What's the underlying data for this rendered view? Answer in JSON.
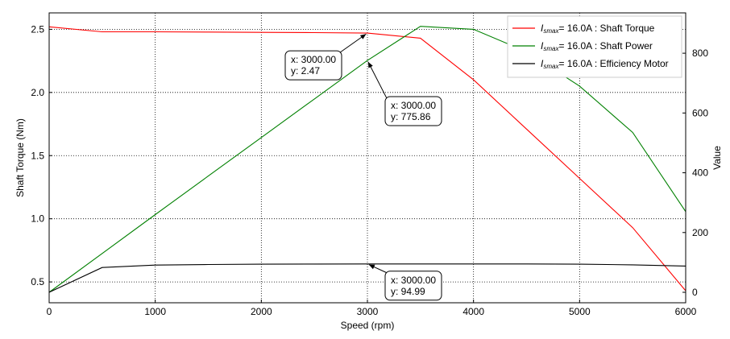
{
  "chart_data": {
    "type": "line",
    "xlabel": "Speed  (rpm)",
    "ylabel": "Shaft Torque  (Nm)",
    "y2label": "Value",
    "xlim": [
      0,
      6000
    ],
    "ylim": [
      0.335,
      2.63
    ],
    "y2lim": [
      -35,
      935
    ],
    "x_ticks": [
      "0",
      "1000",
      "2000",
      "3000",
      "4000",
      "5000",
      "6000"
    ],
    "y_ticks": [
      "0.5",
      "1.0",
      "1.5",
      "2.0",
      "2.5"
    ],
    "y2_ticks": [
      "0",
      "200",
      "400",
      "600",
      "800"
    ],
    "grid": true,
    "grid_style": "dotted",
    "legend_position": "top-right",
    "series": [
      {
        "name": "Shaft Torque",
        "legend_prefix": "I",
        "legend_sub": "smax",
        "legend_value": "= 16.0A",
        "color": "#ff0000",
        "axis": "left",
        "x": [
          0,
          500,
          1000,
          1500,
          2000,
          2500,
          3000,
          3500,
          4000,
          4500,
          5000,
          5500,
          6000
        ],
        "values": [
          2.52,
          2.48,
          2.48,
          2.478,
          2.476,
          2.474,
          2.47,
          2.43,
          2.1,
          1.71,
          1.32,
          0.93,
          0.43
        ]
      },
      {
        "name": "Shaft Power",
        "legend_prefix": "I",
        "legend_sub": "smax",
        "legend_value": "= 16.0A",
        "color": "#008000",
        "axis": "right",
        "x": [
          0,
          500,
          1000,
          1500,
          2000,
          2500,
          3000,
          3500,
          4000,
          4500,
          5000,
          5500,
          6000
        ],
        "values": [
          0,
          130,
          260,
          389,
          518,
          647,
          775.86,
          890,
          880,
          805,
          690,
          535,
          270
        ]
      },
      {
        "name": "Efficiency Motor",
        "legend_prefix": "I",
        "legend_sub": "smax",
        "legend_value": "= 16.0A",
        "color": "#000000",
        "axis": "right",
        "x": [
          0,
          500,
          1000,
          1500,
          2000,
          2500,
          3000,
          3500,
          4000,
          4500,
          5000,
          5500,
          6000
        ],
        "values": [
          0,
          83,
          91,
          93,
          94,
          94.6,
          94.99,
          95,
          95,
          94.8,
          94,
          92,
          88
        ]
      }
    ],
    "annotations": [
      {
        "series": 0,
        "x": 3000,
        "y": 2.47,
        "line1": "x: 3000.00",
        "line2": "y: 2.47",
        "placement": "lower-left"
      },
      {
        "series": 1,
        "x": 3000,
        "y": 775.86,
        "line1": "x: 3000.00",
        "line2": "y: 775.86",
        "placement": "lower-right"
      },
      {
        "series": 2,
        "x": 3000,
        "y": 94.99,
        "line1": "x: 3000.00",
        "line2": "y: 94.99",
        "placement": "lower-right"
      }
    ]
  }
}
